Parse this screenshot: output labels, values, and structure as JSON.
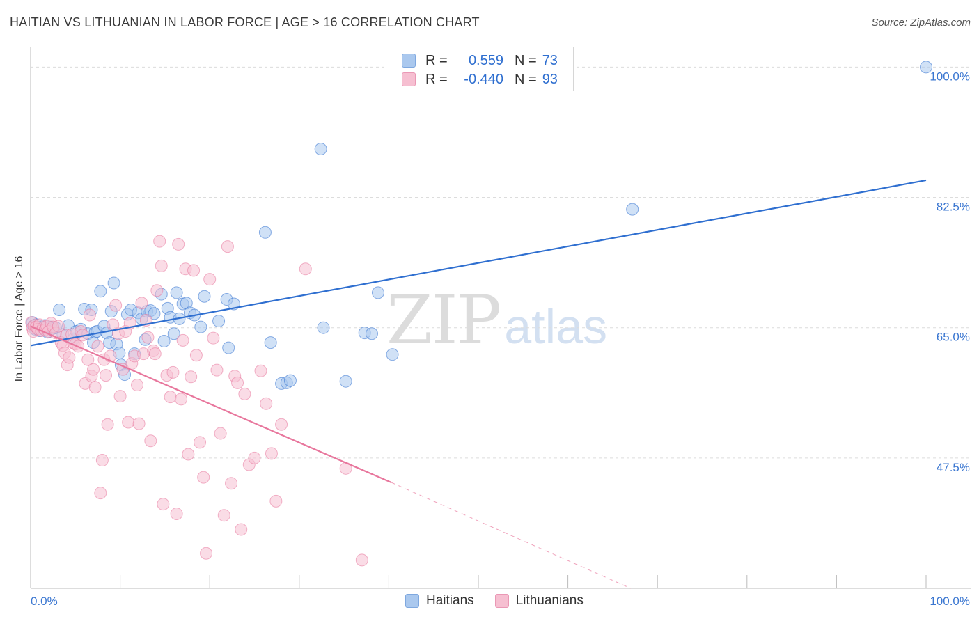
{
  "header": {
    "title": "HAITIAN VS LITHUANIAN IN LABOR FORCE | AGE > 16 CORRELATION CHART",
    "source": "Source: ZipAtlas.com"
  },
  "watermark": {
    "zip": "ZIP",
    "atlas": "atlas"
  },
  "legend": {
    "rows": [
      {
        "r_label": "R =",
        "r_value": "0.559",
        "n_label": "N =",
        "n_value": "73",
        "color": "#aac8ee"
      },
      {
        "r_label": "R =",
        "r_value": "-0.440",
        "n_label": "N =",
        "n_value": "93",
        "color": "#f6bfd1"
      }
    ],
    "bottom": [
      {
        "label": "Haitians",
        "color": "#aac8ee"
      },
      {
        "label": "Lithuanians",
        "color": "#f6bfd1"
      }
    ]
  },
  "chart_data": {
    "type": "scatter",
    "title": "HAITIAN VS LITHUANIAN IN LABOR FORCE | AGE > 16 CORRELATION CHART",
    "ylabel": "In Labor Force | Age > 16",
    "xlabel": "",
    "xlim": [
      0,
      100
    ],
    "ylim": [
      30,
      102
    ],
    "x_tick_labels": [
      "0.0%",
      "100.0%"
    ],
    "y_ticks": [
      47.5,
      65.0,
      82.5,
      100.0
    ],
    "y_tick_labels": [
      "47.5%",
      "65.0%",
      "82.5%",
      "100.0%"
    ],
    "grid": true,
    "legend_position": "top-center",
    "series": [
      {
        "name": "Haitians",
        "color": "#2f6fd0",
        "fill": "#aac8ee",
        "trend": {
          "x": [
            0,
            100
          ],
          "y": [
            62.6,
            84.8
          ],
          "dashed_after": null
        },
        "points": [
          [
            0.2,
            65.7
          ],
          [
            0.3,
            65.2
          ],
          [
            0.5,
            64.8
          ],
          [
            0.6,
            65.4
          ],
          [
            0.8,
            65.0
          ],
          [
            1.0,
            64.6
          ],
          [
            1.2,
            65.1
          ],
          [
            1.4,
            64.9
          ],
          [
            1.6,
            65.3
          ],
          [
            1.9,
            64.4
          ],
          [
            2.2,
            65.1
          ],
          [
            2.5,
            64.9
          ],
          [
            2.8,
            65.0
          ],
          [
            3.2,
            67.4
          ],
          [
            3.6,
            64.1
          ],
          [
            4.2,
            65.3
          ],
          [
            4.8,
            63.5
          ],
          [
            5.1,
            64.5
          ],
          [
            5.6,
            64.8
          ],
          [
            6.0,
            67.5
          ],
          [
            6.4,
            64.2
          ],
          [
            6.8,
            67.4
          ],
          [
            7.0,
            63.0
          ],
          [
            7.2,
            64.4
          ],
          [
            7.4,
            64.5
          ],
          [
            7.8,
            69.9
          ],
          [
            8.2,
            65.2
          ],
          [
            8.5,
            64.3
          ],
          [
            8.8,
            63.0
          ],
          [
            9.0,
            67.2
          ],
          [
            9.3,
            71.0
          ],
          [
            9.6,
            62.8
          ],
          [
            9.9,
            61.6
          ],
          [
            10.1,
            60.0
          ],
          [
            10.5,
            58.7
          ],
          [
            10.8,
            66.8
          ],
          [
            11.2,
            67.4
          ],
          [
            11.6,
            61.5
          ],
          [
            12.0,
            67.0
          ],
          [
            12.4,
            66.2
          ],
          [
            12.8,
            63.4
          ],
          [
            13.0,
            67.2
          ],
          [
            13.4,
            67.3
          ],
          [
            13.8,
            66.9
          ],
          [
            14.6,
            69.5
          ],
          [
            14.9,
            63.2
          ],
          [
            15.3,
            67.6
          ],
          [
            15.6,
            66.4
          ],
          [
            16.0,
            64.2
          ],
          [
            16.3,
            69.7
          ],
          [
            16.6,
            66.2
          ],
          [
            17.0,
            68.2
          ],
          [
            17.4,
            68.3
          ],
          [
            17.8,
            67.0
          ],
          [
            18.3,
            66.7
          ],
          [
            19.0,
            65.1
          ],
          [
            19.4,
            69.2
          ],
          [
            21.0,
            65.9
          ],
          [
            21.9,
            68.8
          ],
          [
            22.1,
            62.3
          ],
          [
            22.7,
            68.2
          ],
          [
            26.2,
            77.8
          ],
          [
            26.8,
            63.0
          ],
          [
            28.0,
            57.5
          ],
          [
            28.6,
            57.6
          ],
          [
            29.0,
            57.9
          ],
          [
            32.4,
            89.0
          ],
          [
            32.7,
            65.0
          ],
          [
            35.2,
            57.8
          ],
          [
            37.3,
            64.3
          ],
          [
            38.1,
            64.2
          ],
          [
            38.8,
            69.7
          ],
          [
            40.4,
            61.4
          ],
          [
            67.2,
            80.9
          ],
          [
            100.0,
            100.0
          ]
        ]
      },
      {
        "name": "Lithuanians",
        "color": "#e8779d",
        "fill": "#f6bfd1",
        "trend": {
          "x": [
            0,
            40.3,
            67.0
          ],
          "y": [
            65.2,
            44.2,
            30.0
          ],
          "dashed_after": 40.3
        },
        "points": [
          [
            0.1,
            65.7
          ],
          [
            0.2,
            65.0
          ],
          [
            0.3,
            64.5
          ],
          [
            0.4,
            65.3
          ],
          [
            0.6,
            65.1
          ],
          [
            0.8,
            64.8
          ],
          [
            1.0,
            65.4
          ],
          [
            1.2,
            64.6
          ],
          [
            1.4,
            65.0
          ],
          [
            1.6,
            64.7
          ],
          [
            1.8,
            65.2
          ],
          [
            2.0,
            64.5
          ],
          [
            2.3,
            65.6
          ],
          [
            2.5,
            65.1
          ],
          [
            2.8,
            64.3
          ],
          [
            3.1,
            65.2
          ],
          [
            3.4,
            63.0
          ],
          [
            3.6,
            62.6
          ],
          [
            3.8,
            61.6
          ],
          [
            4.0,
            64.0
          ],
          [
            4.1,
            60.0
          ],
          [
            4.3,
            61.0
          ],
          [
            4.6,
            64.1
          ],
          [
            4.8,
            62.9
          ],
          [
            5.0,
            62.8
          ],
          [
            5.3,
            62.5
          ],
          [
            5.6,
            64.5
          ],
          [
            5.8,
            64.0
          ],
          [
            6.1,
            57.5
          ],
          [
            6.4,
            60.7
          ],
          [
            6.6,
            66.7
          ],
          [
            6.8,
            58.5
          ],
          [
            7.0,
            59.4
          ],
          [
            7.2,
            57.0
          ],
          [
            7.5,
            62.5
          ],
          [
            7.8,
            42.8
          ],
          [
            8.0,
            47.2
          ],
          [
            8.2,
            60.7
          ],
          [
            8.4,
            58.6
          ],
          [
            8.6,
            52.0
          ],
          [
            8.9,
            61.2
          ],
          [
            9.2,
            65.4
          ],
          [
            9.5,
            68.0
          ],
          [
            9.8,
            64.2
          ],
          [
            10.0,
            55.8
          ],
          [
            10.3,
            59.4
          ],
          [
            10.6,
            64.5
          ],
          [
            10.9,
            52.3
          ],
          [
            11.1,
            65.6
          ],
          [
            11.3,
            60.2
          ],
          [
            11.6,
            61.2
          ],
          [
            11.9,
            57.3
          ],
          [
            12.1,
            52.1
          ],
          [
            12.4,
            68.3
          ],
          [
            12.6,
            61.5
          ],
          [
            12.9,
            66.0
          ],
          [
            13.1,
            63.7
          ],
          [
            13.4,
            49.8
          ],
          [
            13.7,
            61.9
          ],
          [
            13.9,
            61.5
          ],
          [
            14.1,
            70.0
          ],
          [
            14.4,
            76.6
          ],
          [
            14.6,
            73.3
          ],
          [
            14.8,
            41.3
          ],
          [
            15.2,
            58.6
          ],
          [
            15.6,
            55.7
          ],
          [
            15.9,
            59.0
          ],
          [
            16.3,
            40.0
          ],
          [
            16.5,
            76.2
          ],
          [
            16.8,
            55.4
          ],
          [
            17.0,
            63.3
          ],
          [
            17.3,
            72.9
          ],
          [
            17.6,
            48.0
          ],
          [
            17.9,
            58.4
          ],
          [
            18.2,
            72.7
          ],
          [
            18.5,
            61.3
          ],
          [
            18.9,
            49.6
          ],
          [
            19.3,
            44.9
          ],
          [
            19.6,
            34.7
          ],
          [
            20.0,
            71.5
          ],
          [
            20.4,
            63.6
          ],
          [
            20.8,
            59.3
          ],
          [
            21.2,
            50.8
          ],
          [
            21.6,
            39.8
          ],
          [
            22.0,
            75.9
          ],
          [
            22.4,
            44.1
          ],
          [
            22.8,
            58.5
          ],
          [
            23.1,
            57.6
          ],
          [
            23.5,
            37.9
          ],
          [
            23.9,
            56.1
          ],
          [
            24.4,
            46.6
          ],
          [
            25.0,
            47.5
          ],
          [
            25.7,
            59.2
          ],
          [
            26.3,
            54.8
          ],
          [
            26.9,
            48.1
          ],
          [
            27.4,
            41.7
          ],
          [
            28.0,
            52.0
          ],
          [
            30.7,
            72.9
          ],
          [
            35.2,
            46.1
          ],
          [
            37.0,
            33.8
          ]
        ]
      }
    ]
  }
}
